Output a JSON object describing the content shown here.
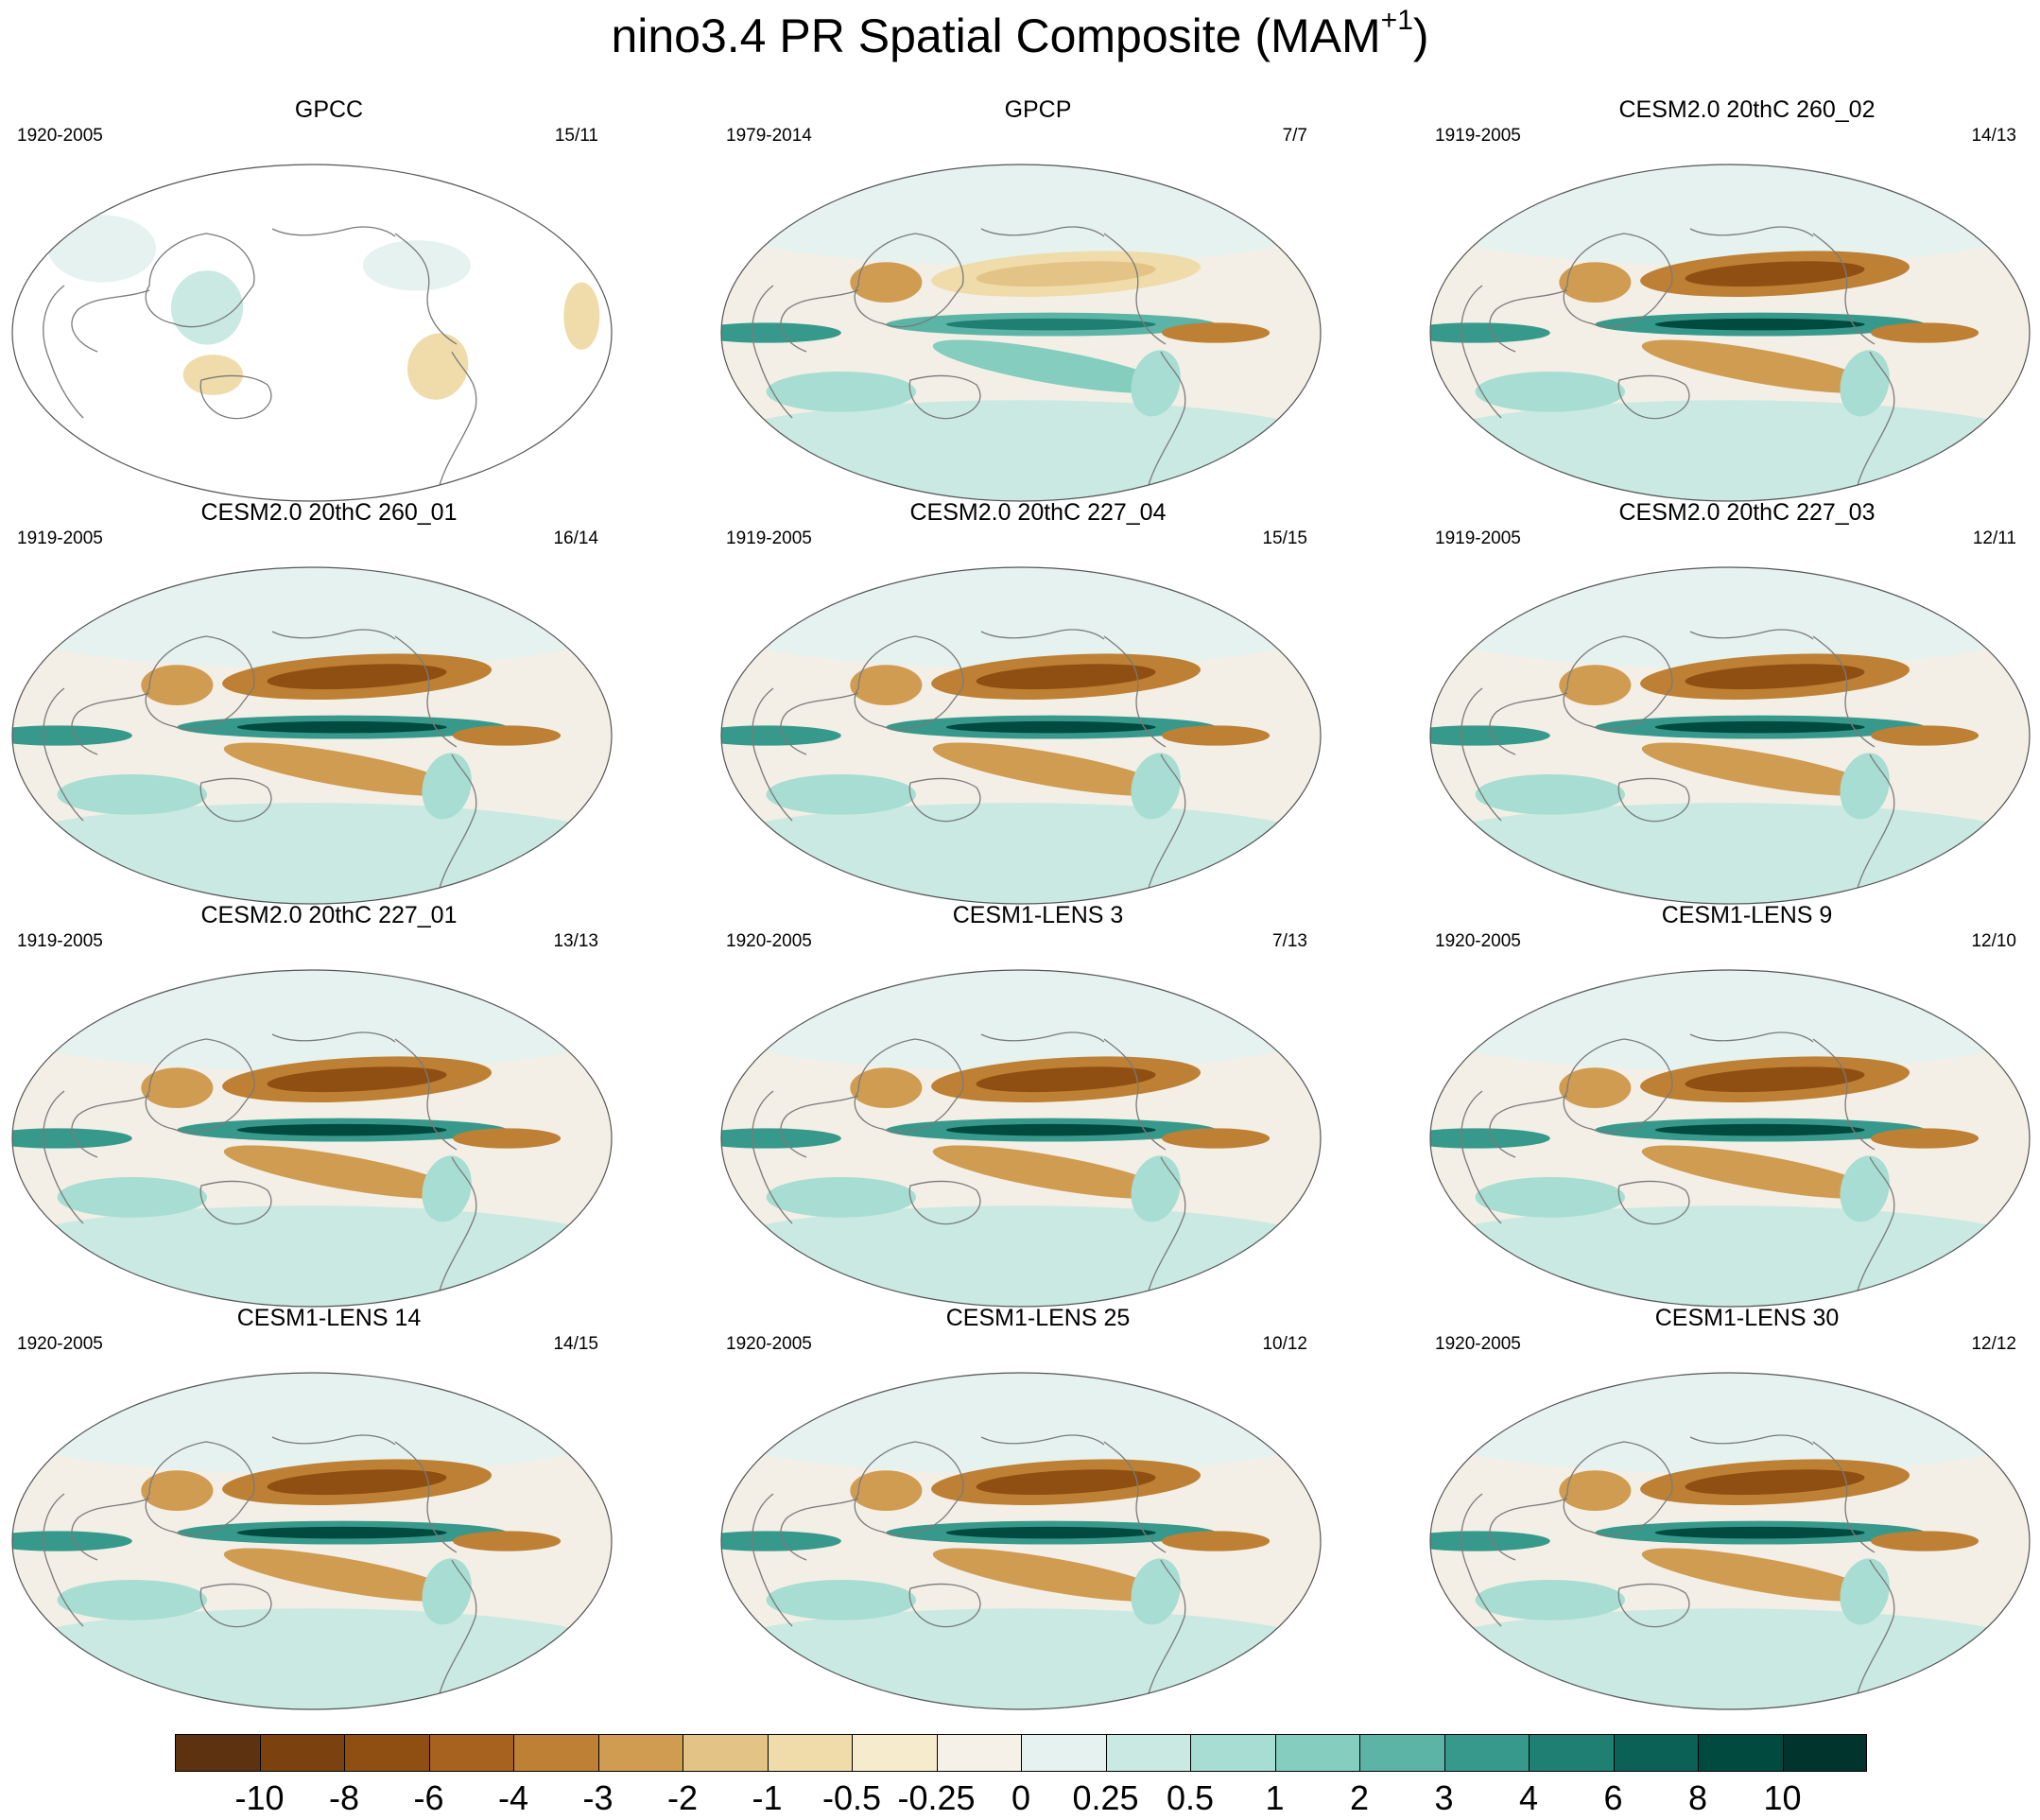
{
  "title": {
    "main": "nino3.4 PR Spatial Composite (MAM",
    "superscript": "+1",
    "close": ")"
  },
  "panels": [
    {
      "title": "GPCC",
      "period": "1920-2005",
      "count": "15/11",
      "style": "obs_land"
    },
    {
      "title": "GPCP",
      "period": "1979-2014",
      "count": "7/7",
      "style": "obs"
    },
    {
      "title": "CESM2.0 20thC 260_02",
      "period": "1919-2005",
      "count": "14/13",
      "style": "model"
    },
    {
      "title": "CESM2.0 20thC 260_01",
      "period": "1919-2005",
      "count": "16/14",
      "style": "model"
    },
    {
      "title": "CESM2.0 20thC 227_04",
      "period": "1919-2005",
      "count": "15/15",
      "style": "model"
    },
    {
      "title": "CESM2.0 20thC 227_03",
      "period": "1919-2005",
      "count": "12/11",
      "style": "model"
    },
    {
      "title": "CESM2.0 20thC 227_01",
      "period": "1919-2005",
      "count": "13/13",
      "style": "model"
    },
    {
      "title": "CESM1-LENS 3",
      "period": "1920-2005",
      "count": "7/13",
      "style": "model"
    },
    {
      "title": "CESM1-LENS 9",
      "period": "1920-2005",
      "count": "12/10",
      "style": "model"
    },
    {
      "title": "CESM1-LENS 14",
      "period": "1920-2005",
      "count": "14/15",
      "style": "model"
    },
    {
      "title": "CESM1-LENS 25",
      "period": "1920-2005",
      "count": "10/12",
      "style": "model"
    },
    {
      "title": "CESM1-LENS 30",
      "period": "1920-2005",
      "count": "12/12",
      "style": "model"
    }
  ],
  "colorbar": {
    "labels": [
      "-10",
      "-8",
      "-6",
      "-4",
      "-3",
      "-2",
      "-1",
      "-0.5",
      "-0.25",
      "0",
      "0.25",
      "0.5",
      "1",
      "2",
      "3",
      "4",
      "6",
      "8",
      "10"
    ],
    "colors": [
      "#5c3210",
      "#7b420f",
      "#8f4f12",
      "#a8621f",
      "#bd8035",
      "#cf9c52",
      "#e3c386",
      "#efdcaa",
      "#f6ebcc",
      "#f5f1e9",
      "#e6f2ef",
      "#c9e9e2",
      "#a7ddd2",
      "#84cdbf",
      "#5cb4a6",
      "#37998b",
      "#1f7f72",
      "#0b6155",
      "#004a40",
      "#01342c"
    ]
  }
}
